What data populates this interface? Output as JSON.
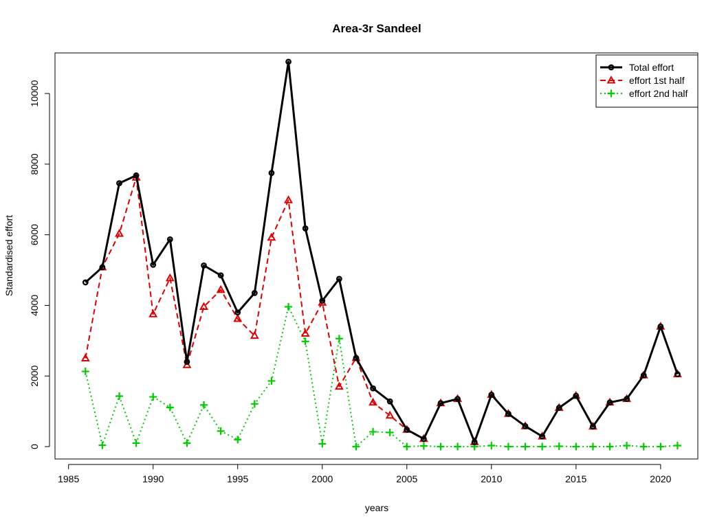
{
  "chart_data": {
    "type": "line",
    "title": "Area-3r Sandeel",
    "xlabel": "years",
    "ylabel": "Standardised effort",
    "xlim": [
      1984.2,
      2022.2
    ],
    "ylim": [
      -350,
      11150
    ],
    "x_ticks": [
      1985,
      1990,
      1995,
      2000,
      2005,
      2010,
      2015,
      2020
    ],
    "y_ticks": [
      0,
      2000,
      4000,
      6000,
      8000,
      10000
    ],
    "legend_position": "top-right",
    "grid": false,
    "x": [
      1986,
      1987,
      1988,
      1989,
      1990,
      1991,
      1992,
      1993,
      1994,
      1995,
      1996,
      1997,
      1998,
      1999,
      2000,
      2001,
      2002,
      2003,
      2004,
      2005,
      2006,
      2007,
      2008,
      2009,
      2010,
      2011,
      2012,
      2013,
      2014,
      2015,
      2016,
      2017,
      2018,
      2019,
      2020,
      2021
    ],
    "series": [
      {
        "name": "Total effort",
        "color": "#000000",
        "line_style": "solid",
        "marker": "circle",
        "values": [
          4650,
          5080,
          7460,
          7680,
          5150,
          5870,
          2400,
          5130,
          4850,
          3800,
          4350,
          7750,
          10900,
          6180,
          4130,
          4750,
          2510,
          1650,
          1280,
          480,
          220,
          1230,
          1350,
          130,
          1470,
          930,
          580,
          290,
          1100,
          1440,
          570,
          1250,
          1350,
          2020,
          3400,
          2050
        ]
      },
      {
        "name": "effort 1st half",
        "color": "#dd0000",
        "line_style": "dashed",
        "marker": "triangle",
        "values": [
          2500,
          5080,
          6030,
          7620,
          3750,
          4770,
          2310,
          3960,
          4440,
          3620,
          3140,
          5920,
          6980,
          3200,
          4080,
          1700,
          2510,
          1250,
          880,
          480,
          220,
          1230,
          1350,
          130,
          1470,
          930,
          580,
          290,
          1100,
          1440,
          570,
          1250,
          1350,
          2020,
          3400,
          2050
        ]
      },
      {
        "name": "effort 2nd half",
        "color": "#00cc00",
        "line_style": "dotted",
        "marker": "plus",
        "values": [
          2130,
          40,
          1430,
          100,
          1410,
          1110,
          100,
          1180,
          440,
          200,
          1210,
          1860,
          3960,
          2980,
          80,
          3060,
          0,
          420,
          400,
          0,
          20,
          0,
          0,
          0,
          30,
          0,
          0,
          0,
          10,
          0,
          0,
          0,
          30,
          0,
          0,
          30
        ]
      }
    ]
  }
}
